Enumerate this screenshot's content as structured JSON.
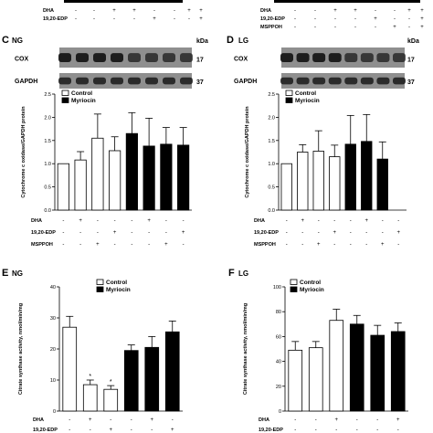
{
  "top_strip": {
    "rows": [
      {
        "label": "DHA",
        "marks": [
          "-",
          "-",
          "+",
          "+",
          "-",
          "-",
          "+",
          "+"
        ]
      },
      {
        "label": "19,20-EDP",
        "marks": [
          "-",
          "-",
          "-",
          "-",
          "+",
          "-",
          "-",
          "+"
        ]
      },
      {
        "label": "MSPPOH",
        "marks": [
          "-",
          "-",
          "-",
          "-",
          "-",
          "+",
          "-",
          "+"
        ]
      }
    ]
  },
  "panels": {
    "C": {
      "letter": "C",
      "group": "NG",
      "blot_bands": [
        "COX",
        "GAPDH"
      ],
      "kda_header": "kDa",
      "kda_values": [
        "17",
        "37"
      ],
      "condition_rows": [
        {
          "label": "DHA",
          "marks": [
            "-",
            "+",
            "-",
            "-",
            "-",
            "+",
            "-",
            "-"
          ]
        },
        {
          "label": "19,20-EDP",
          "marks": [
            "-",
            "-",
            "-",
            "+",
            "-",
            "-",
            "-",
            "+"
          ]
        },
        {
          "label": "MSPPOH",
          "marks": [
            "-",
            "-",
            "+",
            "-",
            "-",
            "-",
            "+",
            "-"
          ]
        }
      ]
    },
    "D": {
      "letter": "D",
      "group": "LG",
      "blot_bands": [
        "COX",
        "GAPDH"
      ],
      "kda_header": "kDa",
      "kda_values": [
        "17",
        "37"
      ],
      "condition_rows": [
        {
          "label": "DHA",
          "marks": [
            "-",
            "+",
            "-",
            "-",
            "-",
            "+",
            "-",
            "-"
          ]
        },
        {
          "label": "19,20-EDP",
          "marks": [
            "-",
            "-",
            "-",
            "+",
            "-",
            "-",
            "-",
            "+"
          ]
        },
        {
          "label": "MSPPOH",
          "marks": [
            "-",
            "-",
            "+",
            "-",
            "-",
            "-",
            "+",
            "-"
          ]
        }
      ]
    },
    "E": {
      "letter": "E",
      "group": "NG",
      "condition_rows": [
        {
          "label": "DHA",
          "marks": [
            "-",
            "+",
            "-",
            "-",
            "+",
            "-"
          ]
        },
        {
          "label": "19,20-EDP",
          "marks": [
            "-",
            "-",
            "+",
            "-",
            "-",
            "+"
          ]
        }
      ]
    },
    "F": {
      "letter": "F",
      "group": "LG",
      "condition_rows": [
        {
          "label": "DHA",
          "marks": [
            "-",
            "-",
            "+",
            "-",
            "-",
            "+"
          ]
        },
        {
          "label": "19,20-EDP",
          "marks": [
            "-",
            "-",
            "-",
            "-",
            "-",
            "-"
          ]
        }
      ]
    }
  },
  "colors": {
    "control": "#ffffff",
    "myriocin": "#000000",
    "edge": "#000000"
  },
  "chart_data": [
    {
      "id": "C",
      "type": "bar",
      "title": "",
      "xlabel": "",
      "ylabel": "Cytochrome c oxidase/GAPDH protein",
      "ylim": [
        0,
        2.5
      ],
      "yticks": [
        "0.0",
        "0.5",
        "1.0",
        "1.5",
        "2.0",
        "2.5"
      ],
      "legend": [
        "Control",
        "Myriocin"
      ],
      "legend_position": "top-left",
      "series": [
        {
          "name": "Control",
          "values": [
            1.0,
            1.08,
            1.55,
            1.28,
            null,
            null,
            null,
            null
          ],
          "errors": [
            0,
            0.18,
            0.52,
            0.3,
            null,
            null,
            null,
            null
          ]
        },
        {
          "name": "Myriocin",
          "values": [
            null,
            null,
            null,
            null,
            1.65,
            1.38,
            1.42,
            1.4
          ],
          "errors": [
            null,
            null,
            null,
            null,
            0.45,
            0.6,
            0.36,
            0.38
          ]
        }
      ]
    },
    {
      "id": "D",
      "type": "bar",
      "title": "",
      "xlabel": "",
      "ylabel": "Cytochrome c oxidase/GAPDH protein",
      "ylim": [
        0,
        2.5
      ],
      "yticks": [
        "0.0",
        "0.5",
        "1.0",
        "1.5",
        "2.0",
        "2.5"
      ],
      "legend": [
        "Control",
        "Myriocin"
      ],
      "legend_position": "top-left",
      "series": [
        {
          "name": "Control",
          "values": [
            1.0,
            1.25,
            1.27,
            1.15,
            null,
            null,
            null,
            null
          ],
          "errors": [
            0,
            0.16,
            0.44,
            0.25,
            null,
            null,
            null,
            null
          ]
        },
        {
          "name": "Myriocin",
          "values": [
            null,
            null,
            null,
            null,
            1.42,
            1.48,
            1.1,
            null
          ],
          "errors": [
            null,
            null,
            null,
            null,
            0.62,
            0.58,
            0.37,
            null
          ]
        }
      ]
    },
    {
      "id": "E",
      "type": "bar",
      "title": "",
      "xlabel": "",
      "ylabel": "Citrate synthase activity, nmol/min/mg",
      "ylim": [
        0,
        40
      ],
      "yticks": [
        "0",
        "10",
        "20",
        "30",
        "40"
      ],
      "legend": [
        "Control",
        "Myriocin"
      ],
      "legend_position": "top-right",
      "series": [
        {
          "name": "Control",
          "values": [
            27,
            8.5,
            7,
            null,
            null,
            null
          ],
          "errors": [
            3.5,
            1.5,
            1.2,
            null,
            null,
            null
          ]
        },
        {
          "name": "Myriocin",
          "values": [
            null,
            null,
            null,
            19.5,
            20.5,
            25.5
          ],
          "errors": [
            null,
            null,
            null,
            1.8,
            3.5,
            3.5
          ]
        }
      ],
      "annotations": [
        {
          "bar": 1,
          "text": "*"
        },
        {
          "bar": 2,
          "text": "*"
        }
      ]
    },
    {
      "id": "F",
      "type": "bar",
      "title": "",
      "xlabel": "",
      "ylabel": "Citrate synthase activity, nmol/min/mg",
      "ylim": [
        0,
        100
      ],
      "yticks": [
        "0",
        "20",
        "40",
        "60",
        "80",
        "100"
      ],
      "legend": [
        "Control",
        "Myriocin"
      ],
      "legend_position": "top-left",
      "series": [
        {
          "name": "Control",
          "values": [
            49,
            51,
            73,
            null,
            null,
            null
          ],
          "errors": [
            7,
            5,
            9,
            null,
            null,
            null
          ]
        },
        {
          "name": "Myriocin",
          "values": [
            null,
            null,
            null,
            70,
            61,
            64
          ],
          "errors": [
            null,
            null,
            null,
            7,
            8,
            7
          ]
        }
      ]
    }
  ]
}
